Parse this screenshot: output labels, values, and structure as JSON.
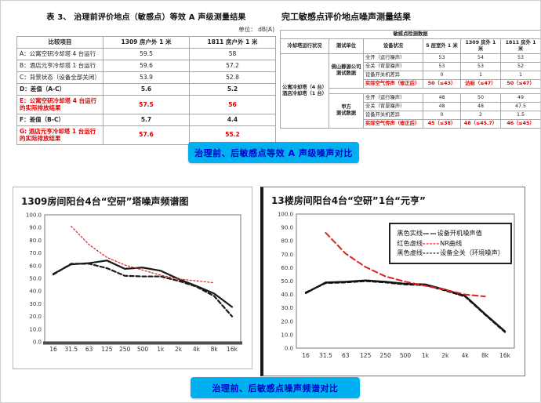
{
  "banners": [
    {
      "text": "治理前、后敏感点等效 A 声级噪声对比"
    },
    {
      "text": "治理前、后敏感点噪声频谱对比"
    }
  ],
  "table1": {
    "title": "表 3、  治理前评价地点（敏感点）等效 A 声级测量结果",
    "unit": "单位： dB(A)",
    "rows": [
      [
        {
          "t": "比较项目",
          "cls": "hd"
        },
        {
          "t": "1309 房户外 1 米",
          "cls": "hd"
        },
        {
          "t": "1811 房户外 1 米",
          "cls": "hd"
        }
      ],
      [
        {
          "t": "A：公寓空研冷却塔 4 台运行",
          "cls": "left"
        },
        {
          "t": "59.5"
        },
        {
          "t": "58"
        }
      ],
      [
        {
          "t": "B：酒店元亨冷却塔 1 台运行",
          "cls": "left"
        },
        {
          "t": "59.6"
        },
        {
          "t": "57.2"
        }
      ],
      [
        {
          "t": "C：背景状态（设备全部关闭）",
          "cls": "left"
        },
        {
          "t": "53.9"
        },
        {
          "t": "52.8"
        }
      ],
      [
        {
          "t": "D：差值（A-C）",
          "cls": "left b"
        },
        {
          "t": "5.6",
          "cls": "b"
        },
        {
          "t": "5.2",
          "cls": "b"
        }
      ],
      [
        {
          "t": "E：公寓空研冷却塔 4 台运行的实际排放结果",
          "cls": "left b red"
        },
        {
          "t": "57.5",
          "cls": "b red"
        },
        {
          "t": "56",
          "cls": "b red"
        }
      ],
      [
        {
          "t": "F：差值（B-C）",
          "cls": "left b"
        },
        {
          "t": "5.7",
          "cls": "b"
        },
        {
          "t": "4.4",
          "cls": "b"
        }
      ],
      [
        {
          "t": "G: 酒店元亨冷却塔 1 台运行的实际排放结果",
          "cls": "left b red"
        },
        {
          "t": "57.6",
          "cls": "b red"
        },
        {
          "t": "55.2",
          "cls": "b red"
        }
      ]
    ]
  },
  "table2": {
    "title": "完工敏感点评价地点噪声测量结果",
    "rows": [
      [
        {
          "t": "敏感点检测数据",
          "c": 6,
          "cls": "hd"
        }
      ],
      [
        {
          "t": "冷却塔运行状况",
          "cls": "hd"
        },
        {
          "t": "测试单位",
          "cls": "hd"
        },
        {
          "t": "设备状况",
          "cls": "hd"
        },
        {
          "t": "5 层室外 1 米",
          "cls": "hd"
        },
        {
          "t": "1309 房外 1 米",
          "cls": "hd"
        },
        {
          "t": "1811 房外 1 米",
          "cls": "hd"
        }
      ],
      [
        {
          "t": "公寓冷却塔（4 台）\n酒店冷却塔（1 台）",
          "r": 9,
          "cls": "b"
        },
        {
          "t": "佛山静源公司\n测试数据",
          "r": 4,
          "cls": "b"
        },
        {
          "t": "全开（运行噪声）",
          "cls": "left"
        },
        {
          "t": "53"
        },
        {
          "t": "54"
        },
        {
          "t": "53"
        }
      ],
      [
        {
          "t": "全关（背景噪声）",
          "cls": "left"
        },
        {
          "t": "53"
        },
        {
          "t": "53"
        },
        {
          "t": "52"
        }
      ],
      [
        {
          "t": "设备开关机差异",
          "cls": "left"
        },
        {
          "t": "0"
        },
        {
          "t": "1"
        },
        {
          "t": "1"
        }
      ],
      [
        {
          "t": "实际空气传声（修正后）",
          "cls": "left b red"
        },
        {
          "t": "50（≤43）",
          "cls": "b red"
        },
        {
          "t": "达标（≤47）",
          "cls": "b red"
        },
        {
          "t": "50（≤47）",
          "cls": "b red"
        }
      ],
      [
        {
          "t": "",
          "c": 5,
          "cls": "blank"
        }
      ],
      [
        {
          "t": "甲方\n测试数据",
          "r": 4,
          "cls": "b"
        },
        {
          "t": "全开（运行噪声）",
          "cls": "left"
        },
        {
          "t": "48"
        },
        {
          "t": "50"
        },
        {
          "t": "49"
        }
      ],
      [
        {
          "t": "全关（背景噪声）",
          "cls": "left"
        },
        {
          "t": "48"
        },
        {
          "t": "48"
        },
        {
          "t": "47.5"
        }
      ],
      [
        {
          "t": "设备开关机差异",
          "cls": "left"
        },
        {
          "t": "0"
        },
        {
          "t": "2"
        },
        {
          "t": "1.5"
        }
      ],
      [
        {
          "t": "实际空气传声（修正后）",
          "cls": "left b red"
        },
        {
          "t": "45（≤38）",
          "cls": "b red"
        },
        {
          "t": "48（≤45.7）",
          "cls": "b red"
        },
        {
          "t": "46（≤45）",
          "cls": "b red"
        }
      ]
    ]
  },
  "chart_data": [
    {
      "type": "line",
      "title": "1309房间阳台4台“空研”塔噪声频谱图",
      "xlabel": "",
      "ylabel": "",
      "categories": [
        "16",
        "31.5",
        "63",
        "125",
        "250",
        "500",
        "1k",
        "2k",
        "4k",
        "8k",
        "16k"
      ],
      "ylim": [
        0,
        100
      ],
      "ytick_step": 10,
      "grid": false,
      "legend_position": "none",
      "series": [
        {
          "name": "设备开机噪声值",
          "color": "#1a1a1a",
          "style": "solid",
          "values": [
            53.5,
            61,
            62,
            64,
            57.5,
            58.5,
            56,
            49.5,
            44,
            38,
            27.5
          ]
        },
        {
          "name": "设备全关（环境噪声）",
          "color": "#1a1a1a",
          "style": "dashed",
          "values": [
            53,
            61.5,
            61.5,
            58,
            52,
            51.5,
            51.5,
            48,
            43.5,
            36,
            20
          ]
        },
        {
          "name": "NR曲线",
          "color": "#d93030",
          "style": "dotted",
          "values": [
            null,
            91,
            76.5,
            66.5,
            60.5,
            56.5,
            52.5,
            49.5,
            48,
            46.5,
            null
          ]
        }
      ]
    },
    {
      "type": "line",
      "title": "13楼房间阳台4台“空研”1台“元亨”",
      "xlabel": "",
      "ylabel": "",
      "categories": [
        "16",
        "31.5",
        "63",
        "125",
        "250",
        "500",
        "1k",
        "2k",
        "4k",
        "8k",
        "16k"
      ],
      "ylim": [
        0,
        100
      ],
      "ytick_step": 10,
      "grid": false,
      "legend_position": "top-right",
      "series": [
        {
          "name": "设备开机噪声值",
          "color": "#111111",
          "style": "solid",
          "values": [
            41,
            49,
            49.5,
            50.5,
            49.5,
            48,
            47.5,
            43.5,
            39,
            25.5,
            12.5
          ]
        },
        {
          "name": "设备全关（环境噪声）",
          "color": "#111111",
          "style": "dashed",
          "values": [
            41.5,
            48.5,
            49,
            50,
            49,
            47.5,
            47,
            43,
            38.5,
            25,
            12
          ]
        },
        {
          "name": "NR曲线",
          "color": "#e02020",
          "style": "red-dashed",
          "values": [
            null,
            86,
            70.5,
            60.5,
            53.5,
            49.5,
            46.5,
            43.5,
            40,
            38.5,
            null
          ]
        }
      ],
      "legend": {
        "entries": [
          {
            "prefix": "黑色实线",
            "connector": "——",
            "suffix": "设备开机噪声值",
            "connector_color": "#000000"
          },
          {
            "prefix": "红色虚线",
            "connector": "-----",
            "suffix": "NR曲线",
            "connector_color": "#ff0000"
          },
          {
            "prefix": "黑色虚线",
            "connector": "-----",
            "suffix": "设备全关（环境噪声）",
            "connector_color": "#000000"
          }
        ]
      }
    }
  ]
}
